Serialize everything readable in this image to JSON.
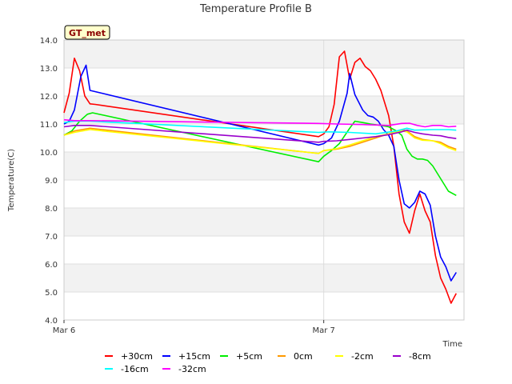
{
  "badge": {
    "label": "GT_met",
    "background": "#ffffcc",
    "text_color": "#8b0000"
  },
  "chart_data": {
    "type": "line",
    "title": "Temperature Profile B",
    "xlabel": "Time",
    "ylabel": "Temperature(C)",
    "ylim": [
      4.0,
      14.0
    ],
    "yticks": [
      4.0,
      5.0,
      6.0,
      7.0,
      8.0,
      9.0,
      10.0,
      11.0,
      12.0,
      13.0,
      14.0
    ],
    "ytick_labels": [
      "4.0",
      "5.0",
      "6.0",
      "7.0",
      "8.0",
      "9.0",
      "10.0",
      "11.0",
      "12.0",
      "13.0",
      "14.0"
    ],
    "x_unit": "days since Mar 6 00:00",
    "xlim": [
      0,
      1.54
    ],
    "xticks": [
      0,
      1
    ],
    "xtick_labels": [
      "Mar 6",
      "Mar 7"
    ],
    "grid": true,
    "band_color": "#f2f2f2",
    "legend_position": "bottom",
    "series": [
      {
        "name": "+30cm",
        "color": "#ff0000",
        "points": [
          [
            0,
            11.4
          ],
          [
            0.02,
            12.1
          ],
          [
            0.04,
            13.35
          ],
          [
            0.06,
            12.9
          ],
          [
            0.08,
            12.0
          ],
          [
            0.1,
            11.72
          ],
          [
            0.12,
            11.7
          ],
          [
            0.98,
            10.55
          ],
          [
            1.0,
            10.65
          ],
          [
            1.02,
            10.9
          ],
          [
            1.04,
            11.7
          ],
          [
            1.06,
            13.4
          ],
          [
            1.08,
            13.6
          ],
          [
            1.1,
            12.6
          ],
          [
            1.12,
            13.2
          ],
          [
            1.14,
            13.35
          ],
          [
            1.16,
            13.05
          ],
          [
            1.18,
            12.9
          ],
          [
            1.2,
            12.6
          ],
          [
            1.22,
            12.2
          ],
          [
            1.25,
            11.3
          ],
          [
            1.27,
            10.2
          ],
          [
            1.29,
            8.5
          ],
          [
            1.31,
            7.5
          ],
          [
            1.33,
            7.1
          ],
          [
            1.35,
            7.9
          ],
          [
            1.37,
            8.5
          ],
          [
            1.39,
            7.9
          ],
          [
            1.41,
            7.5
          ],
          [
            1.43,
            6.3
          ],
          [
            1.45,
            5.5
          ],
          [
            1.47,
            5.1
          ],
          [
            1.49,
            4.6
          ],
          [
            1.51,
            4.95
          ]
        ]
      },
      {
        "name": "+15cm",
        "color": "#0000ff",
        "points": [
          [
            0,
            11.0
          ],
          [
            0.02,
            11.1
          ],
          [
            0.04,
            11.5
          ],
          [
            0.065,
            12.7
          ],
          [
            0.085,
            13.1
          ],
          [
            0.1,
            12.2
          ],
          [
            0.98,
            10.25
          ],
          [
            1.0,
            10.3
          ],
          [
            1.03,
            10.5
          ],
          [
            1.06,
            11.1
          ],
          [
            1.09,
            12.1
          ],
          [
            1.1,
            12.8
          ],
          [
            1.12,
            12.05
          ],
          [
            1.15,
            11.5
          ],
          [
            1.17,
            11.3
          ],
          [
            1.19,
            11.25
          ],
          [
            1.21,
            11.1
          ],
          [
            1.23,
            10.8
          ],
          [
            1.25,
            10.6
          ],
          [
            1.27,
            10.2
          ],
          [
            1.29,
            9.0
          ],
          [
            1.31,
            8.15
          ],
          [
            1.33,
            8.0
          ],
          [
            1.35,
            8.2
          ],
          [
            1.37,
            8.6
          ],
          [
            1.39,
            8.5
          ],
          [
            1.41,
            8.1
          ],
          [
            1.43,
            7.0
          ],
          [
            1.45,
            6.25
          ],
          [
            1.47,
            5.9
          ],
          [
            1.49,
            5.4
          ],
          [
            1.51,
            5.7
          ]
        ]
      },
      {
        "name": "+5cm",
        "color": "#00ee00",
        "points": [
          [
            0,
            10.6
          ],
          [
            0.03,
            10.75
          ],
          [
            0.06,
            11.1
          ],
          [
            0.09,
            11.35
          ],
          [
            0.11,
            11.4
          ],
          [
            0.98,
            9.65
          ],
          [
            1.0,
            9.85
          ],
          [
            1.03,
            10.05
          ],
          [
            1.06,
            10.3
          ],
          [
            1.1,
            10.85
          ],
          [
            1.12,
            11.1
          ],
          [
            1.15,
            11.05
          ],
          [
            1.18,
            11.0
          ],
          [
            1.22,
            10.95
          ],
          [
            1.25,
            10.9
          ],
          [
            1.28,
            10.75
          ],
          [
            1.3,
            10.6
          ],
          [
            1.32,
            10.1
          ],
          [
            1.34,
            9.85
          ],
          [
            1.36,
            9.75
          ],
          [
            1.38,
            9.75
          ],
          [
            1.4,
            9.7
          ],
          [
            1.42,
            9.5
          ],
          [
            1.44,
            9.2
          ],
          [
            1.46,
            8.9
          ],
          [
            1.48,
            8.6
          ],
          [
            1.51,
            8.45
          ]
        ]
      },
      {
        "name": "0cm",
        "color": "#ff9900",
        "points": [
          [
            0,
            10.6
          ],
          [
            0.04,
            10.75
          ],
          [
            0.1,
            10.85
          ],
          [
            0.98,
            9.95
          ],
          [
            1.0,
            10.05
          ],
          [
            1.05,
            10.1
          ],
          [
            1.1,
            10.2
          ],
          [
            1.15,
            10.35
          ],
          [
            1.2,
            10.5
          ],
          [
            1.25,
            10.65
          ],
          [
            1.3,
            10.8
          ],
          [
            1.32,
            10.75
          ],
          [
            1.35,
            10.55
          ],
          [
            1.38,
            10.45
          ],
          [
            1.42,
            10.4
          ],
          [
            1.45,
            10.35
          ],
          [
            1.48,
            10.2
          ],
          [
            1.51,
            10.1
          ]
        ]
      },
      {
        "name": "-2cm",
        "color": "#ffff00",
        "points": [
          [
            0,
            10.6
          ],
          [
            0.04,
            10.7
          ],
          [
            0.1,
            10.8
          ],
          [
            0.98,
            9.95
          ],
          [
            1.0,
            10.05
          ],
          [
            1.05,
            10.12
          ],
          [
            1.1,
            10.25
          ],
          [
            1.15,
            10.4
          ],
          [
            1.2,
            10.55
          ],
          [
            1.25,
            10.65
          ],
          [
            1.3,
            10.75
          ],
          [
            1.32,
            10.72
          ],
          [
            1.35,
            10.5
          ],
          [
            1.38,
            10.42
          ],
          [
            1.42,
            10.4
          ],
          [
            1.45,
            10.3
          ],
          [
            1.48,
            10.15
          ],
          [
            1.51,
            10.05
          ]
        ]
      },
      {
        "name": "-8cm",
        "color": "#9900cc",
        "points": [
          [
            0,
            10.9
          ],
          [
            0.04,
            10.95
          ],
          [
            0.1,
            10.95
          ],
          [
            0.98,
            10.35
          ],
          [
            1.0,
            10.38
          ],
          [
            1.05,
            10.4
          ],
          [
            1.1,
            10.45
          ],
          [
            1.15,
            10.5
          ],
          [
            1.2,
            10.55
          ],
          [
            1.25,
            10.62
          ],
          [
            1.3,
            10.72
          ],
          [
            1.32,
            10.78
          ],
          [
            1.35,
            10.7
          ],
          [
            1.38,
            10.65
          ],
          [
            1.42,
            10.6
          ],
          [
            1.45,
            10.58
          ],
          [
            1.48,
            10.52
          ],
          [
            1.51,
            10.48
          ]
        ]
      },
      {
        "name": "-16cm",
        "color": "#00ffff",
        "points": [
          [
            0,
            11.05
          ],
          [
            0.04,
            11.1
          ],
          [
            0.1,
            11.1
          ],
          [
            0.98,
            10.7
          ],
          [
            1.02,
            10.72
          ],
          [
            1.1,
            10.7
          ],
          [
            1.2,
            10.65
          ],
          [
            1.28,
            10.75
          ],
          [
            1.32,
            10.85
          ],
          [
            1.35,
            10.78
          ],
          [
            1.42,
            10.8
          ],
          [
            1.48,
            10.8
          ],
          [
            1.51,
            10.78
          ]
        ]
      },
      {
        "name": "-32cm",
        "color": "#ff00ff",
        "points": [
          [
            0,
            11.15
          ],
          [
            0.04,
            11.12
          ],
          [
            0.1,
            11.12
          ],
          [
            0.98,
            11.02
          ],
          [
            1.05,
            11.0
          ],
          [
            1.15,
            10.98
          ],
          [
            1.25,
            10.95
          ],
          [
            1.3,
            11.02
          ],
          [
            1.33,
            11.03
          ],
          [
            1.36,
            10.95
          ],
          [
            1.39,
            10.9
          ],
          [
            1.42,
            10.95
          ],
          [
            1.45,
            10.95
          ],
          [
            1.48,
            10.9
          ],
          [
            1.51,
            10.92
          ]
        ]
      }
    ]
  }
}
